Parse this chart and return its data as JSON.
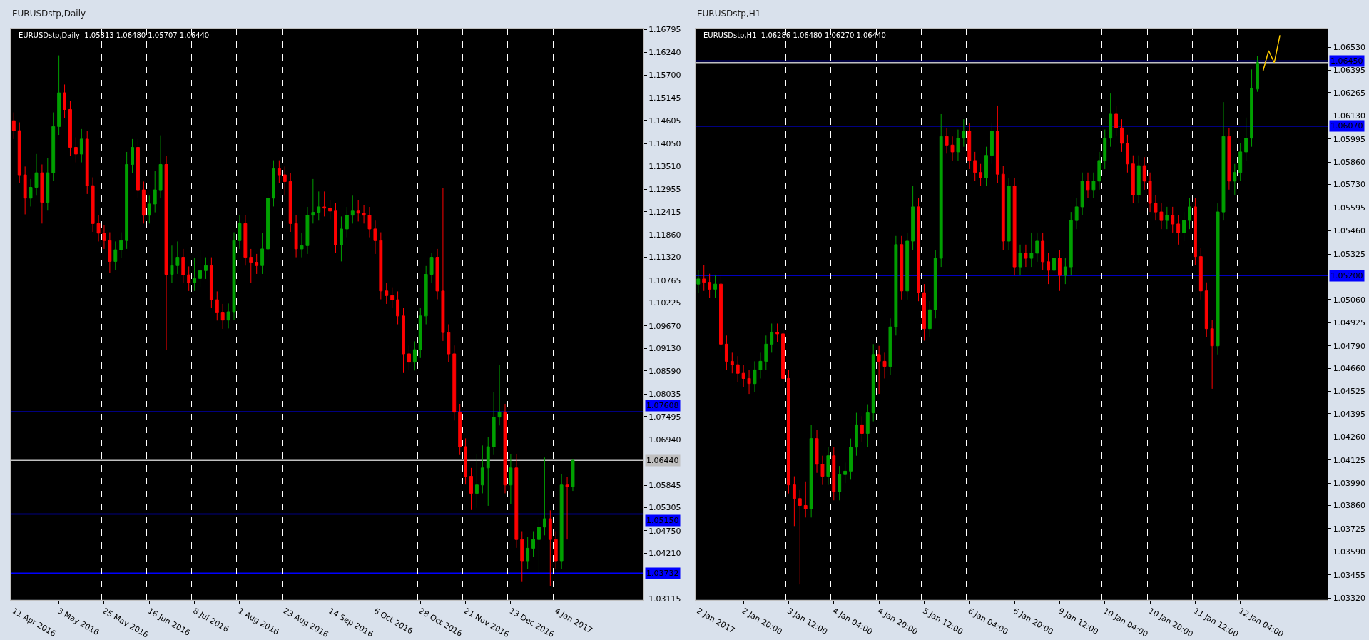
{
  "chart_data": [
    {
      "type": "candlestick",
      "title": "EURUSDstp,Daily",
      "annotations": [
        "EURUSDstp,Daily  1.05813 1.06480 1.05707 1.06440"
      ],
      "categories": [
        "11 Apr 2016",
        null,
        null,
        null,
        null,
        null,
        null,
        null,
        "3 May 2016",
        null,
        null,
        null,
        null,
        null,
        null,
        null,
        "25 May 2016",
        null,
        null,
        null,
        null,
        null,
        null,
        null,
        "16 Jun 2016",
        null,
        null,
        null,
        null,
        null,
        null,
        null,
        "8 Jul 2016",
        null,
        null,
        null,
        null,
        null,
        null,
        null,
        "1 Aug 2016",
        null,
        null,
        null,
        null,
        null,
        null,
        null,
        "23 Aug 2016",
        null,
        null,
        null,
        null,
        null,
        null,
        null,
        "14 Sep 2016",
        null,
        null,
        null,
        null,
        null,
        null,
        null,
        "6 Oct 2016",
        null,
        null,
        null,
        null,
        null,
        null,
        null,
        "28 Oct 2016",
        null,
        null,
        null,
        null,
        null,
        null,
        null,
        "21 Nov 2016",
        null,
        null,
        null,
        null,
        null,
        null,
        null,
        "13 Dec 2016",
        null,
        null,
        null,
        null,
        null,
        null,
        null,
        "4 Jan 2017",
        null,
        null,
        null,
        null,
        null,
        null,
        null,
        null,
        null,
        null,
        null,
        null,
        null,
        null,
        null
      ],
      "ohlc": [
        [
          1.146,
          1.148,
          1.1416,
          1.1436
        ],
        [
          1.1436,
          1.1456,
          1.131,
          1.133
        ],
        [
          1.133,
          1.135,
          1.1235,
          1.1274
        ],
        [
          1.1274,
          1.132,
          1.1254,
          1.13
        ],
        [
          1.13,
          1.138,
          1.128,
          1.1335
        ],
        [
          1.1335,
          1.1355,
          1.1213,
          1.1264
        ],
        [
          1.1264,
          1.137,
          1.1244,
          1.1335
        ],
        [
          1.1335,
          1.148,
          1.1315,
          1.1446
        ],
        [
          1.1446,
          1.1617,
          1.1426,
          1.1527
        ],
        [
          1.1527,
          1.1547,
          1.1467,
          1.1487
        ],
        [
          1.1487,
          1.1507,
          1.1376,
          1.1396
        ],
        [
          1.1396,
          1.142,
          1.136,
          1.138
        ],
        [
          1.138,
          1.144,
          1.136,
          1.1416
        ],
        [
          1.1416,
          1.1436,
          1.1284,
          1.1304
        ],
        [
          1.1304,
          1.1324,
          1.1193,
          1.1213
        ],
        [
          1.1213,
          1.1233,
          1.117,
          1.119
        ],
        [
          1.119,
          1.121,
          1.1152,
          1.1172
        ],
        [
          1.1172,
          1.1192,
          1.1095,
          1.1122
        ],
        [
          1.1122,
          1.117,
          1.1102,
          1.115
        ],
        [
          1.115,
          1.1192,
          1.113,
          1.1172
        ],
        [
          1.1172,
          1.1385,
          1.1152,
          1.1355
        ],
        [
          1.1355,
          1.1416,
          1.1335,
          1.1396
        ],
        [
          1.1396,
          1.1416,
          1.1274,
          1.1294
        ],
        [
          1.1294,
          1.1314,
          1.1213,
          1.1233
        ],
        [
          1.1233,
          1.128,
          1.1213,
          1.126
        ],
        [
          1.126,
          1.134,
          1.124,
          1.1294
        ],
        [
          1.1294,
          1.1425,
          1.1274,
          1.1355
        ],
        [
          1.1355,
          1.1375,
          1.091,
          1.1091
        ],
        [
          1.1091,
          1.116,
          1.1071,
          1.1112
        ],
        [
          1.1112,
          1.117,
          1.1092,
          1.1132
        ],
        [
          1.1132,
          1.1152,
          1.107,
          1.109
        ],
        [
          1.109,
          1.111,
          1.1051,
          1.1071
        ],
        [
          1.1071,
          1.113,
          1.1051,
          1.1081
        ],
        [
          1.1081,
          1.115,
          1.1061,
          1.11
        ],
        [
          1.11,
          1.1132,
          1.108,
          1.1112
        ],
        [
          1.1112,
          1.1132,
          1.101,
          1.103
        ],
        [
          1.103,
          1.105,
          1.098,
          1.1
        ],
        [
          1.1,
          1.102,
          1.096,
          1.0981
        ],
        [
          1.0981,
          1.1021,
          1.0961,
          1.1001
        ],
        [
          1.1001,
          1.1192,
          1.0981,
          1.1172
        ],
        [
          1.1172,
          1.1233,
          1.1152,
          1.1213
        ],
        [
          1.1213,
          1.1233,
          1.1112,
          1.1132
        ],
        [
          1.1132,
          1.1152,
          1.1071,
          1.112
        ],
        [
          1.112,
          1.114,
          1.1092,
          1.1112
        ],
        [
          1.1112,
          1.119,
          1.1092,
          1.1152
        ],
        [
          1.1152,
          1.1294,
          1.1132,
          1.1274
        ],
        [
          1.1274,
          1.1365,
          1.1254,
          1.1345
        ],
        [
          1.1345,
          1.1365,
          1.131,
          1.133
        ],
        [
          1.133,
          1.135,
          1.128,
          1.1314
        ],
        [
          1.1314,
          1.1334,
          1.1193,
          1.1213
        ],
        [
          1.1213,
          1.1233,
          1.1132,
          1.1152
        ],
        [
          1.1152,
          1.119,
          1.1132,
          1.116
        ],
        [
          1.116,
          1.1253,
          1.114,
          1.1233
        ],
        [
          1.1233,
          1.132,
          1.1213,
          1.124
        ],
        [
          1.124,
          1.129,
          1.122,
          1.1253
        ],
        [
          1.1253,
          1.129,
          1.123,
          1.125
        ],
        [
          1.125,
          1.127,
          1.1223,
          1.1243
        ],
        [
          1.1243,
          1.1263,
          1.1142,
          1.1162
        ],
        [
          1.1162,
          1.123,
          1.1122,
          1.12
        ],
        [
          1.12,
          1.1253,
          1.118,
          1.1233
        ],
        [
          1.1233,
          1.128,
          1.1213,
          1.1243
        ],
        [
          1.1243,
          1.127,
          1.1218,
          1.1238
        ],
        [
          1.1238,
          1.1258,
          1.1213,
          1.1233
        ],
        [
          1.1233,
          1.1253,
          1.118,
          1.12
        ],
        [
          1.12,
          1.122,
          1.114,
          1.1172
        ],
        [
          1.1172,
          1.1192,
          1.1031,
          1.1051
        ],
        [
          1.1051,
          1.1071,
          1.102,
          1.104
        ],
        [
          1.104,
          1.106,
          1.101,
          1.103
        ],
        [
          1.103,
          1.105,
          1.0971,
          1.0991
        ],
        [
          1.0991,
          1.1011,
          1.0854,
          1.09
        ],
        [
          1.09,
          1.092,
          1.086,
          1.088
        ],
        [
          1.088,
          1.093,
          1.086,
          1.091
        ],
        [
          1.091,
          1.1011,
          1.089,
          1.0991
        ],
        [
          1.0991,
          1.1111,
          1.0971,
          1.1091
        ],
        [
          1.1091,
          1.1142,
          1.1071,
          1.1132
        ],
        [
          1.1132,
          1.1152,
          1.1031,
          1.1051
        ],
        [
          1.1051,
          1.1299,
          1.0931,
          1.0951
        ],
        [
          1.0951,
          1.0971,
          1.088,
          1.09
        ],
        [
          1.09,
          1.092,
          1.074,
          1.076
        ],
        [
          1.076,
          1.078,
          1.0657,
          1.0677
        ],
        [
          1.0677,
          1.0697,
          1.0586,
          1.0606
        ],
        [
          1.0606,
          1.0626,
          1.0525,
          1.0565
        ],
        [
          1.0565,
          1.066,
          1.053,
          1.0585
        ],
        [
          1.0585,
          1.068,
          1.0565,
          1.0626
        ],
        [
          1.0626,
          1.07,
          1.0535,
          1.0677
        ],
        [
          1.0677,
          1.0808,
          1.0657,
          1.0748
        ],
        [
          1.0748,
          1.0874,
          1.0728,
          1.076
        ],
        [
          1.076,
          1.078,
          1.0565,
          1.0585
        ],
        [
          1.0585,
          1.066,
          1.054,
          1.0626
        ],
        [
          1.0626,
          1.066,
          1.0434,
          1.0454
        ],
        [
          1.0454,
          1.0474,
          1.0352,
          1.0403
        ],
        [
          1.0403,
          1.046,
          1.0383,
          1.0433
        ],
        [
          1.0433,
          1.0474,
          1.0413,
          1.0454
        ],
        [
          1.0454,
          1.0504,
          1.0372,
          1.0484
        ],
        [
          1.0484,
          1.0651,
          1.0464,
          1.0504
        ],
        [
          1.0504,
          1.0524,
          1.0342,
          1.0454
        ],
        [
          1.0454,
          1.0474,
          1.0383,
          1.0403
        ],
        [
          1.0403,
          1.0612,
          1.0383,
          1.0585
        ],
        [
          1.0585,
          1.0605,
          1.0454,
          1.05813
        ],
        [
          1.05813,
          1.0648,
          1.05707,
          1.0644
        ],
        null,
        null,
        null,
        null,
        null,
        null,
        null,
        null,
        null,
        null,
        null,
        null
      ],
      "colors": [
        "#ff0000",
        "#ff0000",
        "#ff0000",
        "#00a000",
        "#00a000",
        "#ff0000",
        "#00a000",
        "#00a000",
        "#00a000",
        "#ff0000",
        "#ff0000",
        "#ff0000",
        "#00a000",
        "#ff0000",
        "#ff0000",
        "#ff0000",
        "#ff0000",
        "#ff0000",
        "#00a000",
        "#00a000",
        "#00a000",
        "#00a000",
        "#ff0000",
        "#ff0000",
        "#00a000",
        "#00a000",
        "#00a000",
        "#ff0000",
        "#00a000",
        "#00a000",
        "#ff0000",
        "#ff0000",
        "#00a000",
        "#00a000",
        "#00a000",
        "#ff0000",
        "#ff0000",
        "#ff0000",
        "#00a000",
        "#00a000",
        "#00a000",
        "#ff0000",
        "#ff0000",
        "#ff0000",
        "#00a000",
        "#00a000",
        "#00a000",
        "#ff0000",
        "#ff0000",
        "#ff0000",
        "#ff0000",
        "#00a000",
        "#00a000",
        "#00a000",
        "#00a000",
        "#ff0000",
        "#ff0000",
        "#ff0000",
        "#00a000",
        "#00a000",
        "#00a000",
        "#ff0000",
        "#ff0000",
        "#ff0000",
        "#ff0000",
        "#ff0000",
        "#ff0000",
        "#ff0000",
        "#ff0000",
        "#ff0000",
        "#ff0000",
        "#00a000",
        "#00a000",
        "#00a000",
        "#00a000",
        "#ff0000",
        "#ff0000",
        "#ff0000",
        "#ff0000",
        "#ff0000",
        "#ff0000",
        "#ff0000",
        "#00a000",
        "#00a000",
        "#00a000",
        "#00a000",
        "#00a000",
        "#ff0000",
        "#00a000",
        "#ff0000",
        "#ff0000",
        "#00a000",
        "#00a000",
        "#00a000",
        "#00a000",
        "#ff0000",
        "#ff0000",
        "#00a000",
        "#ff0000",
        "#00a000",
        null,
        null,
        null,
        null,
        null,
        null,
        null,
        null,
        null,
        null,
        null,
        null
      ],
      "ylim": [
        1.0309,
        1.1682
      ],
      "yticks": [
        {
          "value": 1.16795,
          "label": "1.16795"
        },
        {
          "value": 1.1624,
          "label": "1.16240"
        },
        {
          "value": 1.157,
          "label": "1.15700"
        },
        {
          "value": 1.15145,
          "label": "1.15145"
        },
        {
          "value": 1.14605,
          "label": "1.14605"
        },
        {
          "value": 1.1405,
          "label": "1.14050"
        },
        {
          "value": 1.1351,
          "label": "1.13510"
        },
        {
          "value": 1.12955,
          "label": "1.12955"
        },
        {
          "value": 1.12415,
          "label": "1.12415"
        },
        {
          "value": 1.1186,
          "label": "1.11860"
        },
        {
          "value": 1.1132,
          "label": "1.11320"
        },
        {
          "value": 1.10765,
          "label": "1.10765"
        },
        {
          "value": 1.10225,
          "label": "1.10225"
        },
        {
          "value": 1.0967,
          "label": "1.09670"
        },
        {
          "value": 1.0913,
          "label": "1.09130"
        },
        {
          "value": 1.0859,
          "label": "1.08590"
        },
        {
          "value": 1.08035,
          "label": "1.08035"
        },
        {
          "value": 1.07495,
          "label": "1.07495"
        },
        {
          "value": 1.0694,
          "label": "1.06940"
        },
        {
          "value": 1.05845,
          "label": "1.05845"
        },
        {
          "value": 1.05305,
          "label": "1.05305"
        },
        {
          "value": 1.0475,
          "label": "1.04750"
        },
        {
          "value": 1.0421,
          "label": "1.04210"
        },
        {
          "value": 1.03115,
          "label": "1.03115"
        }
      ],
      "grid": "x",
      "ref_lines": [
        {
          "axis": "y",
          "value": 1.07608,
          "label": "1.07608",
          "color": "#0000ff"
        },
        {
          "axis": "y",
          "value": 1.0515,
          "label": "1.05150",
          "color": "#0000ff"
        },
        {
          "axis": "y",
          "value": 1.03732,
          "label": "1.03732",
          "color": "#0000ff"
        },
        {
          "axis": "y",
          "value": 1.0644,
          "label": "1.06440",
          "color": "#c0c0c0"
        }
      ]
    },
    {
      "type": "candlestick",
      "title": "EURUSDstp,H1",
      "annotations": [
        "EURUSDstp,H1  1.06286 1.06480 1.06270 1.06440"
      ],
      "categories": [
        "2 Jan 2017",
        null,
        null,
        null,
        null,
        null,
        null,
        null,
        "2 Jan 20:00",
        null,
        null,
        null,
        null,
        null,
        null,
        null,
        "3 Jan 12:00",
        null,
        null,
        null,
        null,
        null,
        null,
        null,
        "4 Jan 04:00",
        null,
        null,
        null,
        null,
        null,
        null,
        null,
        "4 Jan 20:00",
        null,
        null,
        null,
        null,
        null,
        null,
        null,
        "5 Jan 12:00",
        null,
        null,
        null,
        null,
        null,
        null,
        null,
        "6 Jan 04:00",
        null,
        null,
        null,
        null,
        null,
        null,
        null,
        "6 Jan 20:00",
        null,
        null,
        null,
        null,
        null,
        null,
        null,
        "9 Jan 12:00",
        null,
        null,
        null,
        null,
        null,
        null,
        null,
        "10 Jan 04:00",
        null,
        null,
        null,
        null,
        null,
        null,
        null,
        "10 Jan 20:00",
        null,
        null,
        null,
        null,
        null,
        null,
        null,
        "11 Jan 12:00",
        null,
        null,
        null,
        null,
        null,
        null,
        null,
        "12 Jan 04:00",
        null,
        null,
        null,
        null,
        null,
        null,
        null,
        null,
        null,
        null,
        null,
        null,
        null,
        null,
        null
      ],
      "ohlc": [
        [
          1.0515,
          1.0523,
          1.051,
          1.0518
        ],
        [
          1.0518,
          1.0526,
          1.0511,
          1.0516
        ],
        [
          1.0516,
          1.0521,
          1.0507,
          1.0512
        ],
        [
          1.0512,
          1.052,
          1.0507,
          1.0515
        ],
        [
          1.0515,
          1.052,
          1.0475,
          1.048
        ],
        [
          1.048,
          1.0485,
          1.0465,
          1.047
        ],
        [
          1.047,
          1.0475,
          1.0463,
          1.0468
        ],
        [
          1.0468,
          1.0473,
          1.0458,
          1.0463
        ],
        [
          1.0463,
          1.0468,
          1.0455,
          1.046
        ],
        [
          1.046,
          1.0465,
          1.0451,
          1.0457
        ],
        [
          1.0457,
          1.047,
          1.0452,
          1.0465
        ],
        [
          1.0465,
          1.0475,
          1.046,
          1.047
        ],
        [
          1.047,
          1.0485,
          1.0465,
          1.048
        ],
        [
          1.048,
          1.0492,
          1.0475,
          1.0487
        ],
        [
          1.0487,
          1.0492,
          1.0481,
          1.0486
        ],
        [
          1.0486,
          1.0491,
          1.0455,
          1.046
        ],
        [
          1.046,
          1.0465,
          1.0393,
          1.0398
        ],
        [
          1.0398,
          1.0403,
          1.0374,
          1.039
        ],
        [
          1.039,
          1.0395,
          1.034,
          1.0386
        ],
        [
          1.0386,
          1.04,
          1.0379,
          1.0384
        ],
        [
          1.0384,
          1.0433,
          1.0379,
          1.0425
        ],
        [
          1.0425,
          1.043,
          1.0405,
          1.041
        ],
        [
          1.041,
          1.0415,
          1.0398,
          1.0403
        ],
        [
          1.0403,
          1.042,
          1.0398,
          1.0415
        ],
        [
          1.0415,
          1.042,
          1.0389,
          1.0394
        ],
        [
          1.0394,
          1.0409,
          1.0389,
          1.0404
        ],
        [
          1.0404,
          1.0411,
          1.0399,
          1.0406
        ],
        [
          1.0406,
          1.0425,
          1.0401,
          1.042
        ],
        [
          1.042,
          1.044,
          1.0415,
          1.0433
        ],
        [
          1.0433,
          1.0438,
          1.0423,
          1.0428
        ],
        [
          1.0428,
          1.0445,
          1.042,
          1.044
        ],
        [
          1.044,
          1.048,
          1.0435,
          1.0474
        ],
        [
          1.0474,
          1.0479,
          1.0451,
          1.047
        ],
        [
          1.047,
          1.0475,
          1.046,
          1.0467
        ],
        [
          1.0467,
          1.0495,
          1.0462,
          1.049
        ],
        [
          1.049,
          1.0543,
          1.0485,
          1.0538
        ],
        [
          1.0538,
          1.0543,
          1.0506,
          1.0511
        ],
        [
          1.0511,
          1.0545,
          1.0506,
          1.054
        ],
        [
          1.054,
          1.0572,
          1.0535,
          1.056
        ],
        [
          1.056,
          1.0565,
          1.0505,
          1.051
        ],
        [
          1.051,
          1.0515,
          1.0482,
          1.0489
        ],
        [
          1.0489,
          1.0505,
          1.0484,
          1.05
        ],
        [
          1.05,
          1.0535,
          1.0495,
          1.053
        ],
        [
          1.053,
          1.0614,
          1.0525,
          1.0601
        ],
        [
          1.0601,
          1.0606,
          1.0591,
          1.0596
        ],
        [
          1.0596,
          1.0601,
          1.0587,
          1.0592
        ],
        [
          1.0592,
          1.0605,
          1.0587,
          1.06
        ],
        [
          1.06,
          1.0611,
          1.0595,
          1.0604
        ],
        [
          1.0604,
          1.0609,
          1.0582,
          1.0587
        ],
        [
          1.0587,
          1.0592,
          1.0575,
          1.058
        ],
        [
          1.058,
          1.0585,
          1.0572,
          1.0577
        ],
        [
          1.0577,
          1.0595,
          1.0572,
          1.059
        ],
        [
          1.059,
          1.0609,
          1.0585,
          1.0604
        ],
        [
          1.0604,
          1.0619,
          1.0574,
          1.0579
        ],
        [
          1.0579,
          1.0584,
          1.0535,
          1.054
        ],
        [
          1.054,
          1.0577,
          1.0535,
          1.0572
        ],
        [
          1.0572,
          1.0577,
          1.052,
          1.0525
        ],
        [
          1.0525,
          1.0538,
          1.052,
          1.0533
        ],
        [
          1.0533,
          1.0538,
          1.0525,
          1.053
        ],
        [
          1.053,
          1.0545,
          1.0525,
          1.0533
        ],
        [
          1.0533,
          1.0545,
          1.0528,
          1.054
        ],
        [
          1.054,
          1.0545,
          1.0523,
          1.0528
        ],
        [
          1.0528,
          1.0533,
          1.0515,
          1.0523
        ],
        [
          1.0523,
          1.0535,
          1.0518,
          1.053
        ],
        [
          1.053,
          1.0535,
          1.0511,
          1.052
        ],
        [
          1.052,
          1.053,
          1.0515,
          1.0525
        ],
        [
          1.0525,
          1.0557,
          1.052,
          1.0552
        ],
        [
          1.0552,
          1.0565,
          1.0547,
          1.056
        ],
        [
          1.056,
          1.058,
          1.0555,
          1.0575
        ],
        [
          1.0575,
          1.058,
          1.0565,
          1.057
        ],
        [
          1.057,
          1.058,
          1.0565,
          1.0575
        ],
        [
          1.0575,
          1.0592,
          1.057,
          1.0587
        ],
        [
          1.0587,
          1.0605,
          1.0582,
          1.06
        ],
        [
          1.06,
          1.0626,
          1.0595,
          1.0614
        ],
        [
          1.0614,
          1.0619,
          1.0601,
          1.0606
        ],
        [
          1.0606,
          1.0611,
          1.0592,
          1.0597
        ],
        [
          1.0597,
          1.0602,
          1.058,
          1.0585
        ],
        [
          1.0585,
          1.059,
          1.0562,
          1.0567
        ],
        [
          1.0567,
          1.059,
          1.0562,
          1.0584
        ],
        [
          1.0584,
          1.0589,
          1.057,
          1.0575
        ],
        [
          1.0575,
          1.058,
          1.0557,
          1.0562
        ],
        [
          1.0562,
          1.0567,
          1.0552,
          1.0557
        ],
        [
          1.0557,
          1.0562,
          1.0547,
          1.0552
        ],
        [
          1.0552,
          1.056,
          1.0547,
          1.0555
        ],
        [
          1.0555,
          1.056,
          1.0545,
          1.055
        ],
        [
          1.055,
          1.0555,
          1.0538,
          1.0545
        ],
        [
          1.0545,
          1.0557,
          1.054,
          1.0552
        ],
        [
          1.0552,
          1.0565,
          1.0547,
          1.056
        ],
        [
          1.056,
          1.0565,
          1.0526,
          1.0531
        ],
        [
          1.0531,
          1.0536,
          1.0506,
          1.0511
        ],
        [
          1.0511,
          1.0516,
          1.0484,
          1.0489
        ],
        [
          1.0489,
          1.0494,
          1.0454,
          1.0479
        ],
        [
          1.0479,
          1.0562,
          1.0474,
          1.0557
        ],
        [
          1.0557,
          1.0621,
          1.0552,
          1.0601
        ],
        [
          1.0601,
          1.0606,
          1.057,
          1.0575
        ],
        [
          1.0575,
          1.0585,
          1.0567,
          1.058
        ],
        [
          1.058,
          1.0597,
          1.0575,
          1.0592
        ],
        [
          1.0592,
          1.0612,
          1.0587,
          1.06
        ],
        [
          1.06,
          1.064,
          1.0595,
          1.0629
        ],
        [
          1.06286,
          1.0648,
          1.0627,
          1.0644
        ],
        null,
        null,
        null,
        null,
        null,
        null,
        null,
        null,
        null,
        null,
        null,
        null
      ],
      "colors": [
        "#00a000",
        "#ff0000",
        "#ff0000",
        "#00a000",
        "#ff0000",
        "#ff0000",
        "#ff0000",
        "#ff0000",
        "#ff0000",
        "#ff0000",
        "#00a000",
        "#00a000",
        "#00a000",
        "#00a000",
        "#ff0000",
        "#ff0000",
        "#ff0000",
        "#ff0000",
        "#ff0000",
        "#ff0000",
        "#00a000",
        "#ff0000",
        "#ff0000",
        "#00a000",
        "#ff0000",
        "#00a000",
        "#00a000",
        "#00a000",
        "#00a000",
        "#ff0000",
        "#00a000",
        "#00a000",
        "#ff0000",
        "#ff0000",
        "#00a000",
        "#00a000",
        "#ff0000",
        "#00a000",
        "#00a000",
        "#ff0000",
        "#ff0000",
        "#00a000",
        "#00a000",
        "#00a000",
        "#ff0000",
        "#ff0000",
        "#00a000",
        "#00a000",
        "#ff0000",
        "#ff0000",
        "#ff0000",
        "#00a000",
        "#00a000",
        "#ff0000",
        "#ff0000",
        "#00a000",
        "#ff0000",
        "#00a000",
        "#ff0000",
        "#00a000",
        "#00a000",
        "#ff0000",
        "#ff0000",
        "#00a000",
        "#ff0000",
        "#00a000",
        "#00a000",
        "#00a000",
        "#00a000",
        "#ff0000",
        "#00a000",
        "#00a000",
        "#00a000",
        "#00a000",
        "#ff0000",
        "#ff0000",
        "#ff0000",
        "#ff0000",
        "#00a000",
        "#ff0000",
        "#ff0000",
        "#ff0000",
        "#ff0000",
        "#00a000",
        "#ff0000",
        "#ff0000",
        "#00a000",
        "#00a000",
        "#ff0000",
        "#ff0000",
        "#ff0000",
        "#ff0000",
        "#00a000",
        "#00a000",
        "#ff0000",
        "#00a000",
        "#00a000",
        "#00a000",
        "#00a000",
        "#00a000",
        null,
        null,
        null,
        null,
        null,
        null,
        null,
        null,
        null,
        null,
        null,
        null
      ],
      "series": [
        {
          "type": "line",
          "color": "#ffcc00",
          "values": [
            null,
            null,
            null,
            null,
            null,
            null,
            null,
            null,
            null,
            null,
            null,
            null,
            null,
            null,
            null,
            null,
            null,
            null,
            null,
            null,
            null,
            null,
            null,
            null,
            null,
            null,
            null,
            null,
            null,
            null,
            null,
            null,
            null,
            null,
            null,
            null,
            null,
            null,
            null,
            null,
            null,
            null,
            null,
            null,
            null,
            null,
            null,
            null,
            null,
            null,
            null,
            null,
            null,
            null,
            null,
            null,
            null,
            null,
            null,
            null,
            null,
            null,
            null,
            null,
            null,
            null,
            null,
            null,
            null,
            null,
            null,
            null,
            null,
            null,
            null,
            null,
            null,
            null,
            null,
            null,
            null,
            null,
            null,
            null,
            null,
            null,
            null,
            null,
            null,
            null,
            null,
            null,
            null,
            null,
            null,
            null,
            null,
            null,
            null,
            null,
            1.0639,
            1.0651,
            1.0644,
            1.066,
            null,
            null,
            null,
            null,
            null,
            null,
            null,
            null
          ]
        }
      ],
      "ylim": [
        1.0331,
        1.0664
      ],
      "yticks": [
        {
          "value": 1.0653,
          "label": "1.06530"
        },
        {
          "value": 1.06395,
          "label": "1.06395"
        },
        {
          "value": 1.06265,
          "label": "1.06265"
        },
        {
          "value": 1.0613,
          "label": "1.06130"
        },
        {
          "value": 1.05995,
          "label": "1.05995"
        },
        {
          "value": 1.0586,
          "label": "1.05860"
        },
        {
          "value": 1.0573,
          "label": "1.05730"
        },
        {
          "value": 1.05595,
          "label": "1.05595"
        },
        {
          "value": 1.0546,
          "label": "1.05460"
        },
        {
          "value": 1.05325,
          "label": "1.05325"
        },
        {
          "value": 1.0506,
          "label": "1.05060"
        },
        {
          "value": 1.04925,
          "label": "1.04925"
        },
        {
          "value": 1.0479,
          "label": "1.04790"
        },
        {
          "value": 1.0466,
          "label": "1.04660"
        },
        {
          "value": 1.04525,
          "label": "1.04525"
        },
        {
          "value": 1.04395,
          "label": "1.04395"
        },
        {
          "value": 1.0426,
          "label": "1.04260"
        },
        {
          "value": 1.04125,
          "label": "1.04125"
        },
        {
          "value": 1.0399,
          "label": "1.03990"
        },
        {
          "value": 1.0386,
          "label": "1.03860"
        },
        {
          "value": 1.03725,
          "label": "1.03725"
        },
        {
          "value": 1.0359,
          "label": "1.03590"
        },
        {
          "value": 1.03455,
          "label": "1.03455"
        },
        {
          "value": 1.0332,
          "label": "1.03320"
        }
      ],
      "grid": "x",
      "ref_lines": [
        {
          "axis": "y",
          "value": 1.0644,
          "label": null,
          "color": "#c0c0c0"
        },
        {
          "axis": "y",
          "value": 1.0645,
          "label": "1.06450",
          "color": "#0000ff"
        },
        {
          "axis": "y",
          "value": 1.0607,
          "label": "1.06070",
          "color": "#0000ff"
        },
        {
          "axis": "y",
          "value": 1.052,
          "label": "1.05200",
          "color": "#0000ff"
        }
      ]
    }
  ]
}
